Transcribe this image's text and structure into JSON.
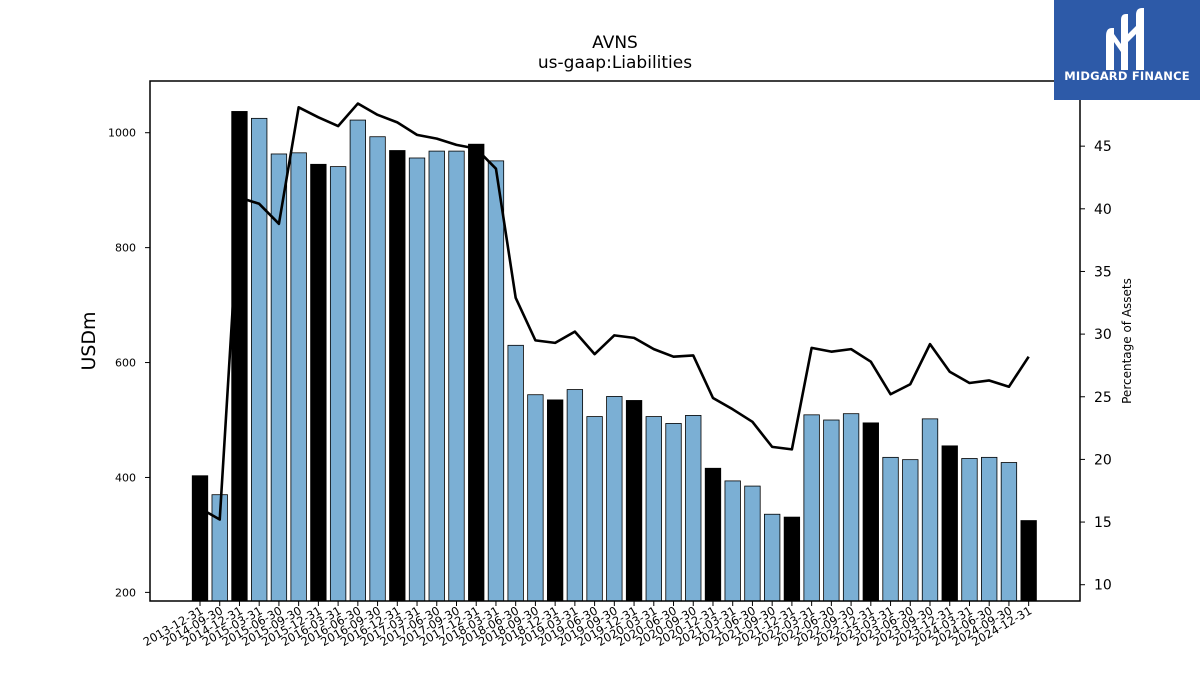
{
  "brand": {
    "name": "MIDGARD FINANCE",
    "bg_color": "#2d5aa8"
  },
  "chart_data": {
    "type": "bar",
    "title": "AVNS",
    "subtitle": "us-gaap:Liabilities",
    "ylabel": "USDm",
    "y2label": "Percentage of Assets",
    "ylim": [
      185,
      1090
    ],
    "y2lim": [
      8.7,
      50.2
    ],
    "yticks": [
      200,
      400,
      600,
      800,
      1000
    ],
    "y2ticks": [
      10,
      15,
      20,
      25,
      30,
      35,
      40,
      45
    ],
    "categories": [
      "2013-12-31",
      "2014-09-30",
      "2014-12-31",
      "2015-03-31",
      "2015-06-30",
      "2015-09-30",
      "2015-12-31",
      "2016-03-31",
      "2016-06-30",
      "2016-09-30",
      "2016-12-31",
      "2017-03-31",
      "2017-06-30",
      "2017-09-30",
      "2017-12-31",
      "2018-03-31",
      "2018-06-30",
      "2018-09-30",
      "2018-12-31",
      "2019-03-31",
      "2019-06-30",
      "2019-09-30",
      "2019-12-31",
      "2020-03-31",
      "2020-06-30",
      "2020-09-30",
      "2020-12-31",
      "2021-03-31",
      "2021-06-30",
      "2021-09-30",
      "2021-12-31",
      "2022-03-31",
      "2022-06-30",
      "2022-09-30",
      "2022-12-31",
      "2023-03-31",
      "2023-06-30",
      "2023-09-30",
      "2023-12-31",
      "2024-03-31",
      "2024-06-30",
      "2024-09-30",
      "2024-12-31"
    ],
    "series": [
      {
        "kind": "bar",
        "values": [
          403,
          370,
          1037,
          1025,
          963,
          965,
          945,
          941,
          1022,
          993,
          969,
          956,
          968,
          968,
          980,
          951,
          630,
          544,
          535,
          553,
          506,
          541,
          534,
          506,
          494,
          508,
          416,
          394,
          385,
          336,
          331,
          509,
          500,
          511,
          495,
          435,
          431,
          502,
          455,
          433,
          435,
          426,
          325
        ],
        "year_end_color": "#000000",
        "quarter_color": "#7bafd4"
      },
      {
        "kind": "line",
        "axis": "right",
        "color": "#000000",
        "values": [
          16.1,
          15.2,
          40.9,
          40.4,
          38.8,
          48.1,
          47.3,
          46.6,
          48.4,
          47.5,
          46.9,
          45.9,
          45.6,
          45.1,
          44.8,
          43.2,
          32.9,
          29.5,
          29.3,
          30.2,
          28.4,
          29.9,
          29.7,
          28.8,
          28.2,
          28.3,
          24.9,
          24.0,
          23.0,
          21.0,
          20.8,
          28.9,
          28.6,
          28.8,
          27.8,
          25.2,
          26.0,
          29.2,
          27.0,
          26.1,
          26.3,
          25.8,
          28.2
        ]
      }
    ],
    "grid": false,
    "legend": "none"
  }
}
